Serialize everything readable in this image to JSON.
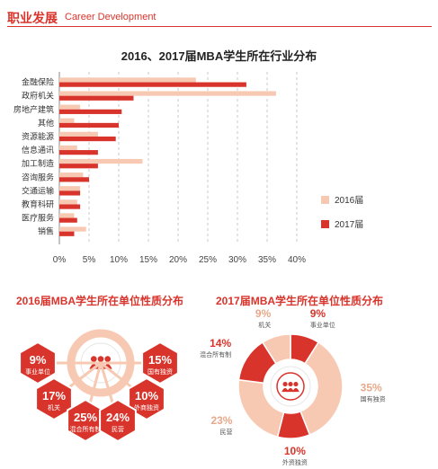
{
  "header": {
    "title_zh": "职业发展",
    "title_en": "Career Development"
  },
  "colors": {
    "c2016": "#f7c9b2",
    "c2017": "#d9342b",
    "accent": "#d9342b",
    "grid": "#bbbbbb"
  },
  "chart_data": [
    {
      "type": "bar",
      "orientation": "horizontal",
      "title": "2016、2017届MBA学生所在行业分布",
      "categories": [
        "金融保险",
        "政府机关",
        "房地产建筑",
        "其他",
        "资源能源",
        "信息通讯",
        "加工制造",
        "咨询服务",
        "交通运输",
        "教育科研",
        "医疗服务",
        "销售"
      ],
      "series": [
        {
          "name": "2016届",
          "values": [
            23,
            36.5,
            3.5,
            2.5,
            6.5,
            3,
            14,
            4,
            3.5,
            3,
            2.5,
            4.5
          ]
        },
        {
          "name": "2017届",
          "values": [
            31.5,
            12.5,
            10.5,
            10,
            9.5,
            6.5,
            6.5,
            5,
            3.5,
            3.5,
            3,
            2.5
          ]
        }
      ],
      "xlim": [
        0,
        40
      ],
      "xticks": [
        "0%",
        "5%",
        "10%",
        "15%",
        "20%",
        "25%",
        "30%",
        "35%",
        "40%"
      ],
      "grid": true,
      "legend": "right"
    },
    {
      "type": "pie",
      "title": "2016届MBA学生所在单位性质分布",
      "slices": [
        {
          "label": "事业单位",
          "value": 9,
          "value_label": "9%"
        },
        {
          "label": "国有独资",
          "value": 15,
          "value_label": "15%"
        },
        {
          "label": "机关",
          "value": 17,
          "value_label": "17%"
        },
        {
          "label": "外商独资",
          "value": 10,
          "value_label": "10%"
        },
        {
          "label": "混合所有制",
          "value": 25,
          "value_label": "25%"
        },
        {
          "label": "民营",
          "value": 24,
          "value_label": "24%"
        }
      ]
    },
    {
      "type": "pie",
      "title": "2017届MBA学生所在单位性质分布",
      "slices": [
        {
          "label": "事业单位",
          "value": 9,
          "value_label": "9%"
        },
        {
          "label": "国有独资",
          "value": 35,
          "value_label": "35%"
        },
        {
          "label": "外资独资",
          "value": 10,
          "value_label": "10%"
        },
        {
          "label": "民营",
          "value": 23,
          "value_label": "23%"
        },
        {
          "label": "混合所有制",
          "value": 14,
          "value_label": "14%"
        },
        {
          "label": "机关",
          "value": 9,
          "value_label": "9%"
        }
      ]
    }
  ]
}
